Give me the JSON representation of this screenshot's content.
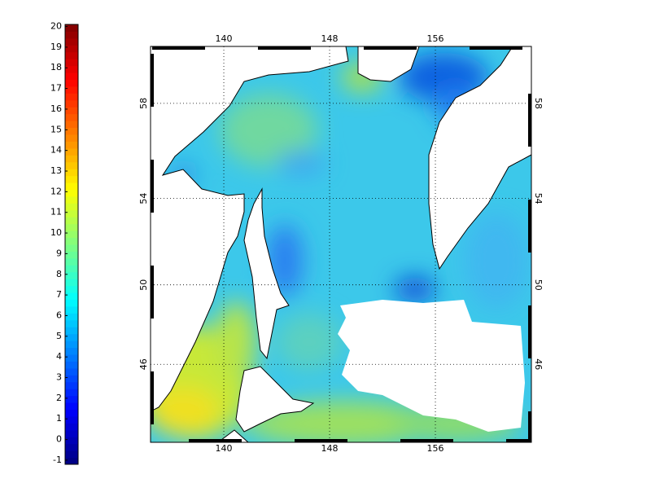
{
  "colorbar": {
    "clim": [
      -1.2,
      20.1
    ],
    "ticks": [
      -1,
      0,
      1,
      2,
      3,
      4,
      5,
      6,
      7,
      8,
      9,
      10,
      11,
      12,
      13,
      14,
      15,
      16,
      17,
      18,
      19,
      20
    ],
    "colormap": "jet"
  },
  "map": {
    "projection": "mercator",
    "lonlim": [
      134.46,
      163.26
    ],
    "latlim": [
      41.77,
      60.2
    ],
    "lon_ticks": [
      140,
      148,
      156
    ],
    "lat_ticks": [
      46,
      50,
      54,
      58
    ],
    "grid": true
  }
}
